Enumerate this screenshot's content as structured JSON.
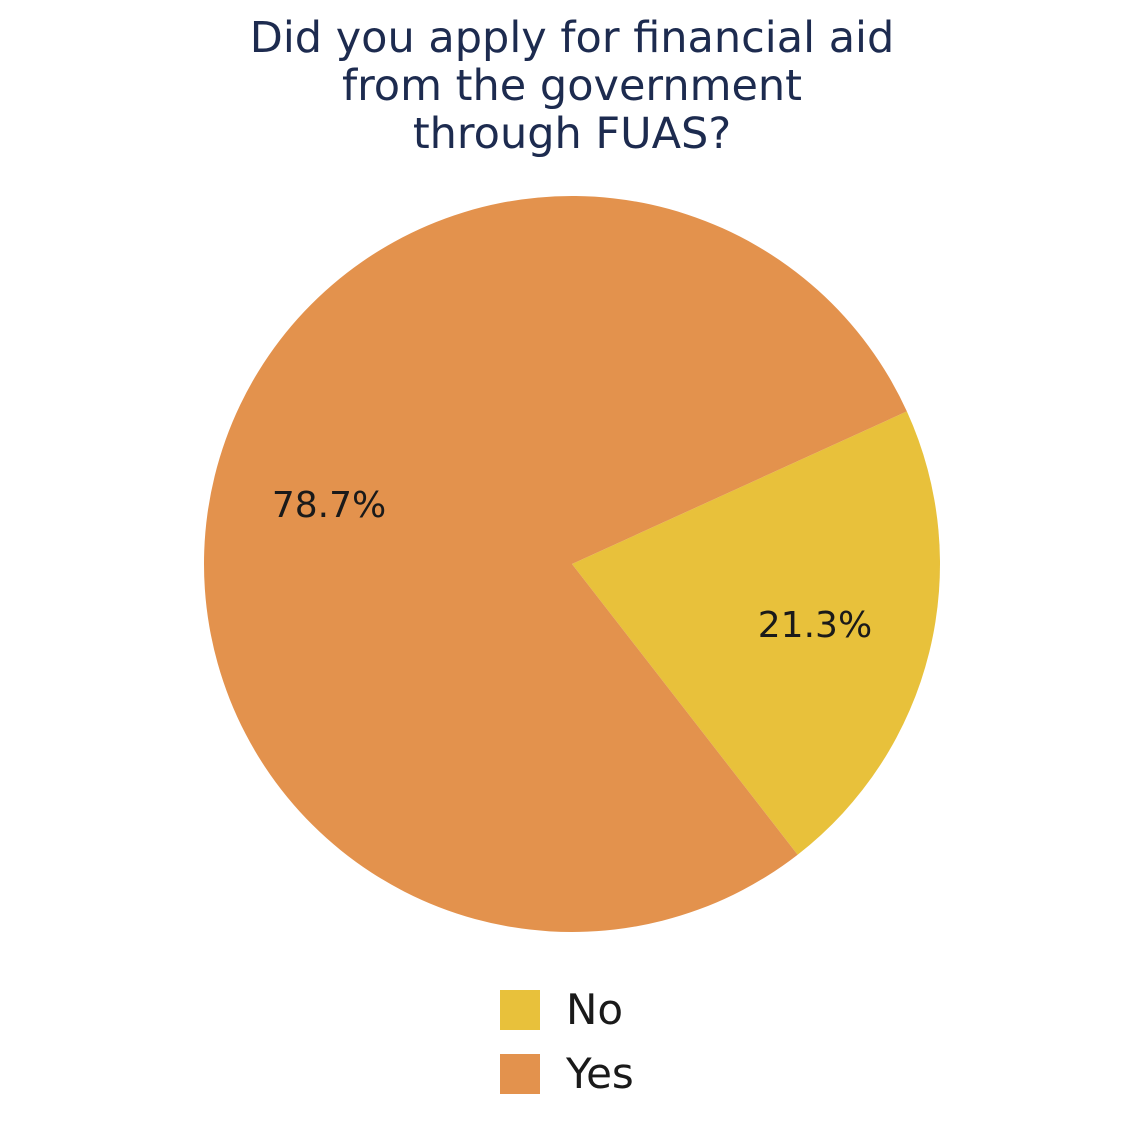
{
  "chart_data": {
    "type": "pie",
    "title_lines": [
      "Did you apply for financial aid",
      "from the government",
      "through FUAS?"
    ],
    "slices": [
      {
        "label": "No",
        "value": 21.3,
        "display": "21.3%",
        "color": "#e8c13b"
      },
      {
        "label": "Yes",
        "value": 78.7,
        "display": "78.7%",
        "color": "#e3924d"
      }
    ],
    "legend": {
      "placement": "bottom",
      "entries": [
        "No",
        "Yes"
      ]
    }
  }
}
